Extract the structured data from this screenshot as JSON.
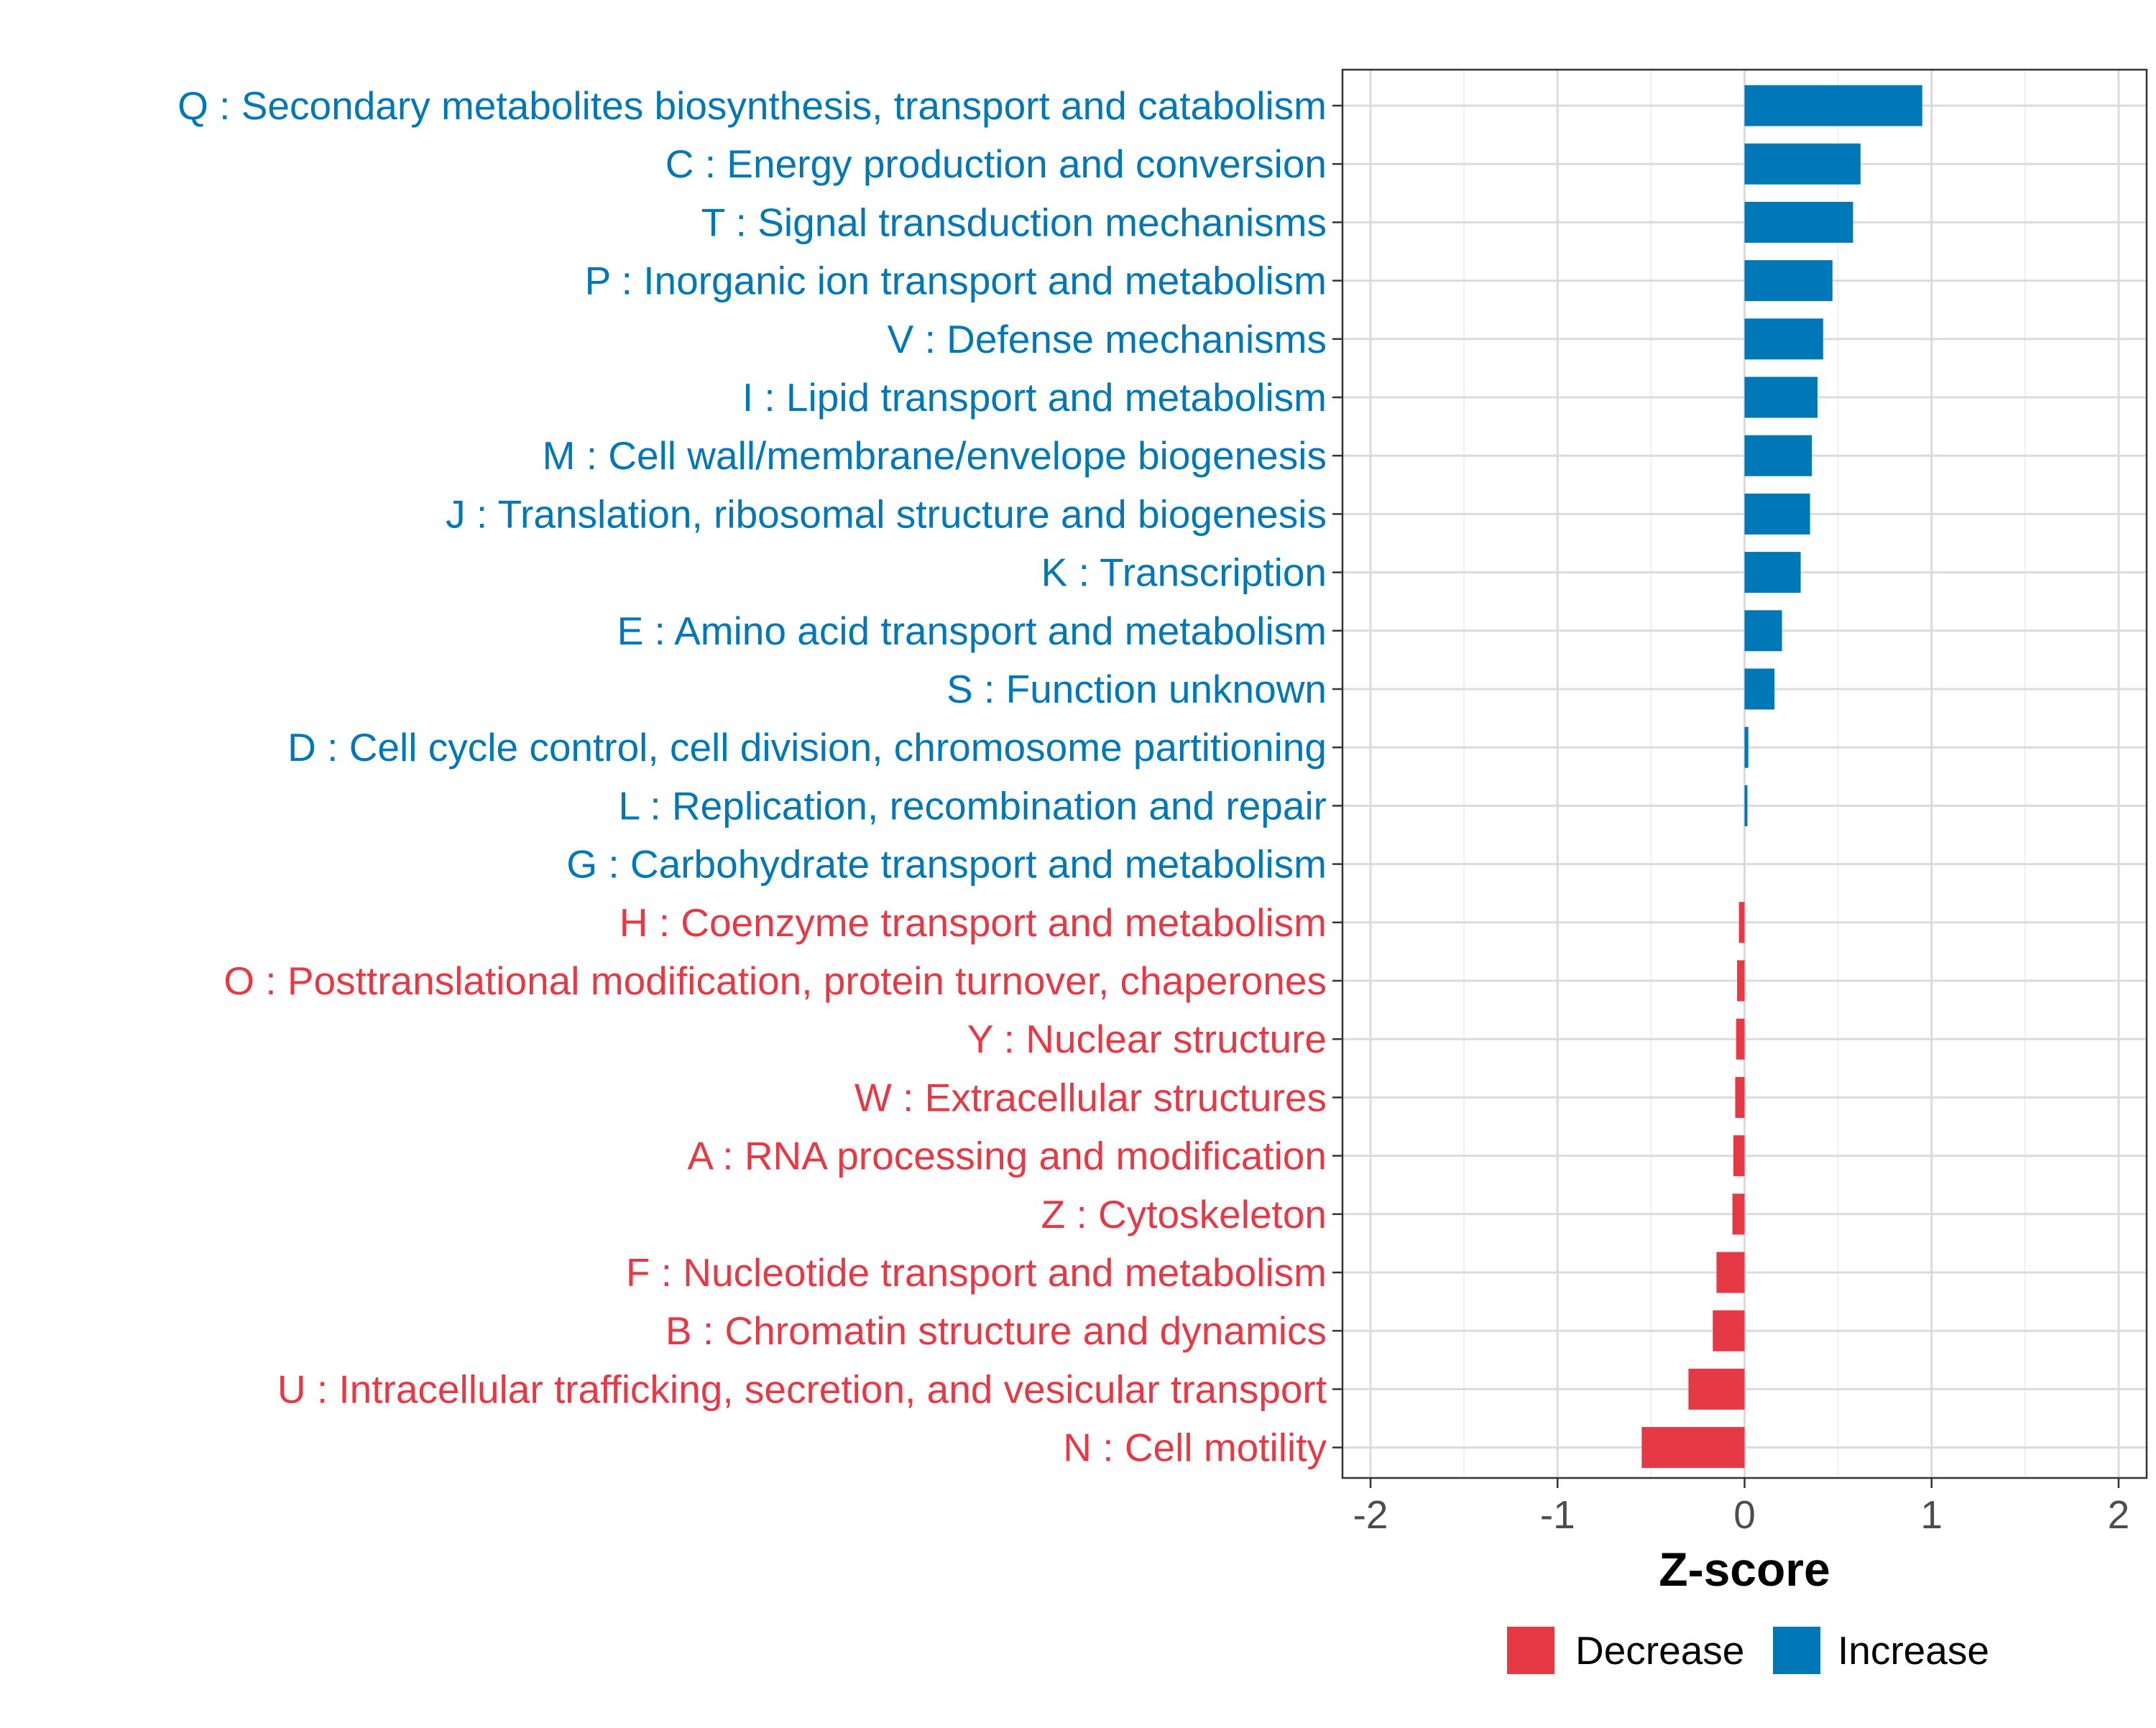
{
  "chart_data": {
    "type": "bar",
    "orientation": "horizontal",
    "title": "",
    "xlabel": "Z-score",
    "ylabel": "",
    "xlim": [
      -2.15,
      2.15
    ],
    "xticks": [
      -2,
      -1,
      0,
      1,
      2
    ],
    "xtick_labels": [
      "-2",
      "-1",
      "0",
      "1",
      "2"
    ],
    "grid": true,
    "legend": {
      "position": "bottom",
      "entries": [
        {
          "label": "Decrease",
          "color": "#E63946"
        },
        {
          "label": "Increase",
          "color": "#0077B6"
        }
      ]
    },
    "categories": [
      {
        "label": "Q : Secondary metabolites biosynthesis, transport and catabolism",
        "value": 0.95,
        "group": "Increase"
      },
      {
        "label": "C : Energy production and conversion",
        "value": 0.62,
        "group": "Increase"
      },
      {
        "label": "T : Signal transduction mechanisms",
        "value": 0.58,
        "group": "Increase"
      },
      {
        "label": "P : Inorganic ion transport and metabolism",
        "value": 0.47,
        "group": "Increase"
      },
      {
        "label": "V : Defense mechanisms",
        "value": 0.42,
        "group": "Increase"
      },
      {
        "label": "I : Lipid transport and metabolism",
        "value": 0.39,
        "group": "Increase"
      },
      {
        "label": "M : Cell wall/membrane/envelope biogenesis",
        "value": 0.36,
        "group": "Increase"
      },
      {
        "label": "J : Translation, ribosomal structure and biogenesis",
        "value": 0.35,
        "group": "Increase"
      },
      {
        "label": "K : Transcription",
        "value": 0.3,
        "group": "Increase"
      },
      {
        "label": "E : Amino acid transport and metabolism",
        "value": 0.2,
        "group": "Increase"
      },
      {
        "label": "S : Function unknown",
        "value": 0.16,
        "group": "Increase"
      },
      {
        "label": "D : Cell cycle control, cell division, chromosome partitioning",
        "value": 0.02,
        "group": "Increase"
      },
      {
        "label": "L : Replication, recombination and repair",
        "value": 0.015,
        "group": "Increase"
      },
      {
        "label": "G : Carbohydrate transport and metabolism",
        "value": 0.0,
        "group": "Increase"
      },
      {
        "label": "H : Coenzyme transport and metabolism",
        "value": -0.03,
        "group": "Decrease"
      },
      {
        "label": "O : Posttranslational modification, protein turnover, chaperones",
        "value": -0.04,
        "group": "Decrease"
      },
      {
        "label": "Y : Nuclear structure",
        "value": -0.045,
        "group": "Decrease"
      },
      {
        "label": "W : Extracellular structures",
        "value": -0.05,
        "group": "Decrease"
      },
      {
        "label": "A : RNA processing and modification",
        "value": -0.06,
        "group": "Decrease"
      },
      {
        "label": "Z : Cytoskeleton",
        "value": -0.065,
        "group": "Decrease"
      },
      {
        "label": "F : Nucleotide transport and metabolism",
        "value": -0.15,
        "group": "Decrease"
      },
      {
        "label": "B : Chromatin structure and dynamics",
        "value": -0.17,
        "group": "Decrease"
      },
      {
        "label": "U : Intracellular trafficking, secretion, and vesicular transport",
        "value": -0.3,
        "group": "Decrease"
      },
      {
        "label": "N : Cell motility",
        "value": -0.55,
        "group": "Decrease"
      }
    ]
  }
}
